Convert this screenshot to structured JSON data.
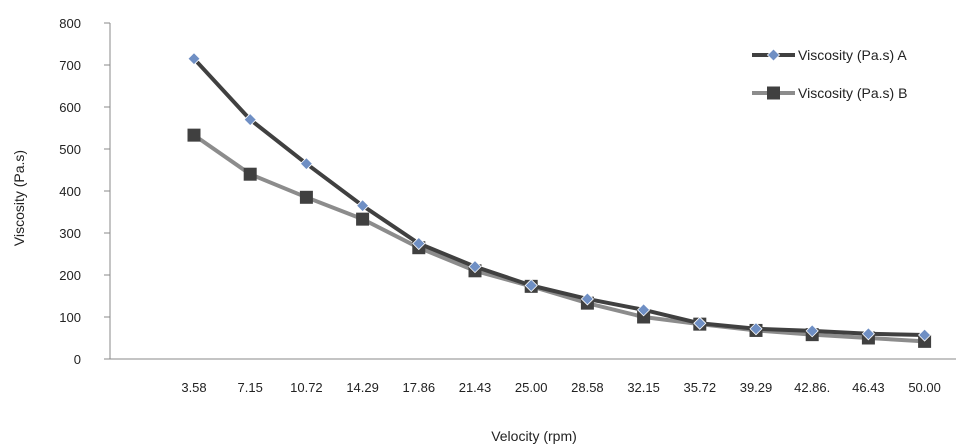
{
  "chart_data": {
    "type": "line",
    "title": "",
    "xlabel": "Velocity  (rpm)",
    "ylabel": "Viscosity  (Pa.s)",
    "categories": [
      "3.58",
      "7.15",
      "10.72",
      "14.29",
      "17.86",
      "21.43",
      "25.00",
      "28.58",
      "32.15",
      "35.72",
      "39.29",
      "42.86.",
      "46.43",
      "50.00"
    ],
    "ylim": [
      0,
      800
    ],
    "yticks": [
      "0",
      "100",
      "200",
      "300",
      "400",
      "500",
      "600",
      "700",
      "800"
    ],
    "grid": false,
    "legend": "top-right",
    "series": [
      {
        "name": "Viscosity (Pa.s) A",
        "marker": "diamond",
        "line_color": "#404040",
        "marker_color": "#6f8fc4",
        "values": [
          715,
          570,
          465,
          365,
          275,
          220,
          175,
          143,
          117,
          85,
          72,
          67,
          60,
          57
        ]
      },
      {
        "name": "Viscosity (Pa.s) B",
        "marker": "square",
        "line_color": "#8c8c8c",
        "marker_color": "#404040",
        "values": [
          533,
          440,
          385,
          333,
          265,
          210,
          173,
          133,
          100,
          83,
          68,
          58,
          50,
          42
        ]
      }
    ]
  }
}
